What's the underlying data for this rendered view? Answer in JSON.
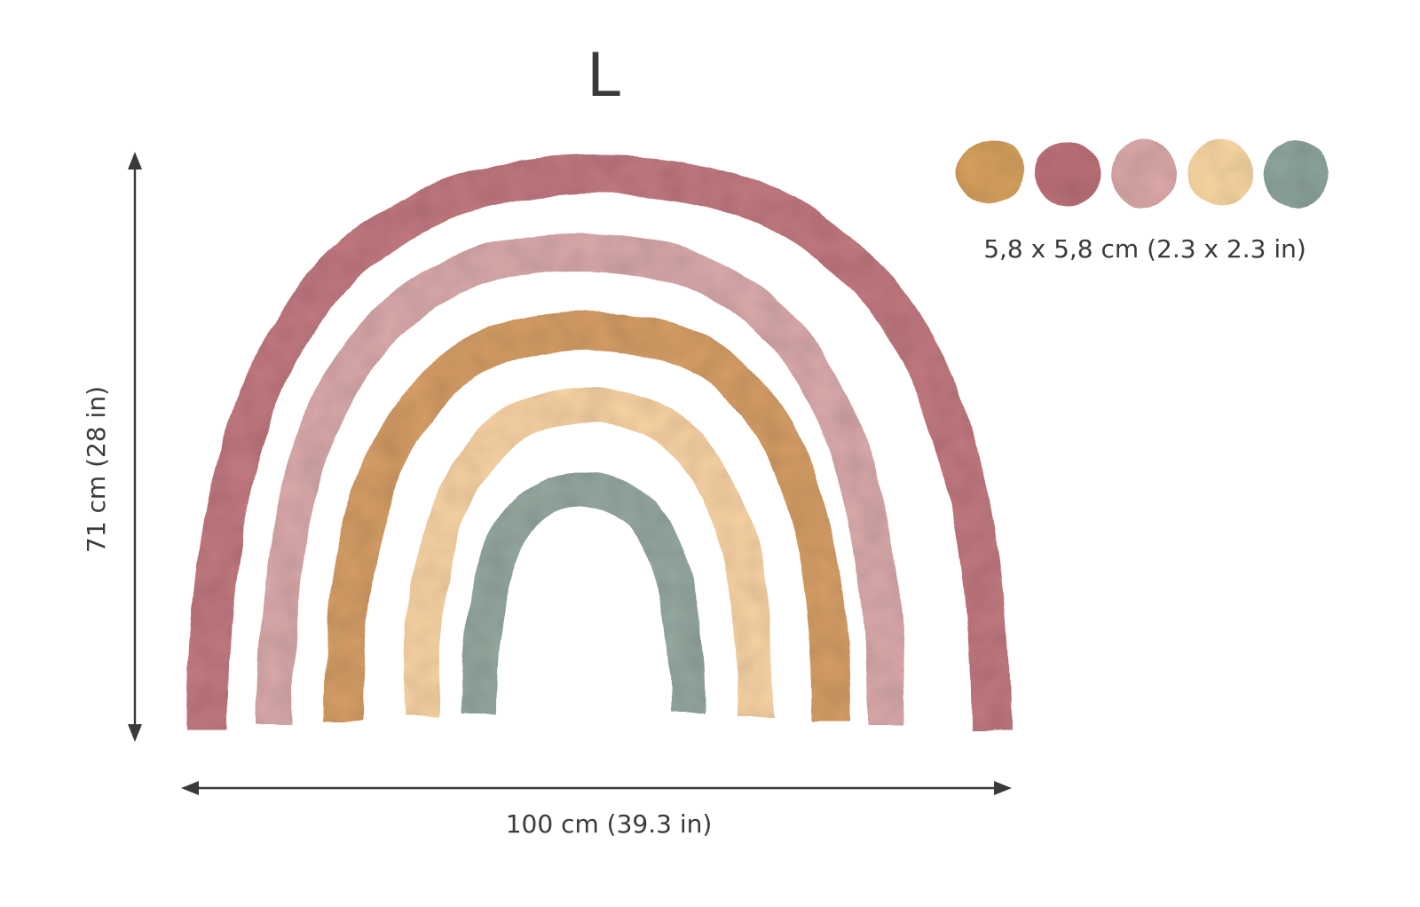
{
  "size_label": "L",
  "dimensions": {
    "height_label": "71 cm (28 in)",
    "width_label": "100 cm (39.3 in)"
  },
  "dots": {
    "size_label": "5,8 x 5,8 cm (2.3 x 2.3 in)",
    "colors": [
      {
        "name": "ochre",
        "hex": "#d9a35f"
      },
      {
        "name": "terracotta-rose",
        "hex": "#c0727a"
      },
      {
        "name": "dusty-pink",
        "hex": "#deaaaa"
      },
      {
        "name": "peach",
        "hex": "#fcd9a4"
      },
      {
        "name": "sage",
        "hex": "#8fa69d"
      }
    ]
  },
  "rainbow": {
    "bands": [
      {
        "name": "terracotta-rose",
        "hex": "#c0727a"
      },
      {
        "name": "dusty-pink",
        "hex": "#d9a5a7"
      },
      {
        "name": "ochre",
        "hex": "#d59a5e"
      },
      {
        "name": "peach",
        "hex": "#fad3a0"
      },
      {
        "name": "sage",
        "hex": "#8fa49b"
      }
    ]
  }
}
